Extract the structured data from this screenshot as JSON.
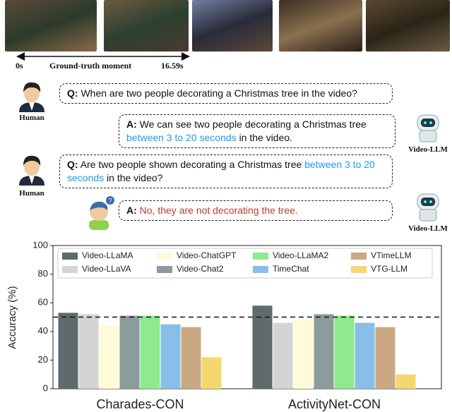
{
  "figure": {
    "timeline": {
      "start": "0s",
      "label": "Ground-truth moment",
      "end": "16.59s"
    },
    "dialogue": [
      {
        "speaker": "Human",
        "prefix": "Q:",
        "segments": [
          {
            "text": "When are two people decorating a Christmas tree in the video?",
            "color": "#111111"
          }
        ]
      },
      {
        "speaker": "Video-LLM",
        "prefix": "A:",
        "segments": [
          {
            "text": "We can see two people decorating a Christmas tree",
            "color": "#111111"
          },
          {
            "text": "between 3 to 20 seconds",
            "color": "#1e9be8"
          },
          {
            "text": "in the video.",
            "color": "#111111"
          }
        ]
      },
      {
        "speaker": "Human",
        "prefix": "Q:",
        "segments": [
          {
            "text": "Are two people shown decorating a Christmas tree",
            "color": "#111111"
          },
          {
            "text": "between 3 to 20 seconds",
            "color": "#1e9be8"
          },
          {
            "text": "in the video?",
            "color": "#111111"
          }
        ]
      },
      {
        "speaker": "Video-LLM",
        "prefix": "A:",
        "segments": [
          {
            "text": "No, they are not decorating the tree.",
            "color": "#c0392b"
          }
        ]
      }
    ]
  },
  "chart_data": {
    "type": "bar",
    "ylabel": "Accuracy (%)",
    "categories": [
      "Charades-CON",
      "ActivityNet-CON"
    ],
    "series": [
      {
        "name": "Video-LLaMA",
        "color": "#5e6a6c",
        "values": [
          53,
          58
        ]
      },
      {
        "name": "Video-LLaVA",
        "color": "#d4d4d4",
        "values": [
          52,
          46
        ]
      },
      {
        "name": "Video-ChatGPT",
        "color": "#fffbd8",
        "values": [
          44,
          48
        ]
      },
      {
        "name": "Video-Chat2",
        "color": "#8c9b9b",
        "values": [
          51,
          52
        ]
      },
      {
        "name": "Video-LLaMA2",
        "color": "#8eea8c",
        "values": [
          51,
          51
        ]
      },
      {
        "name": "TimeChat",
        "color": "#88bfe8",
        "values": [
          45,
          46
        ]
      },
      {
        "name": "VTimeLLM",
        "color": "#c9a883",
        "values": [
          43,
          43
        ]
      },
      {
        "name": "VTG-LLM",
        "color": "#f5d770",
        "values": [
          22,
          10
        ]
      }
    ],
    "ylim": [
      0,
      100
    ],
    "yticks": [
      0,
      20,
      40,
      60,
      80,
      100
    ],
    "reference_line": 50,
    "legend": "top",
    "grid": false
  }
}
